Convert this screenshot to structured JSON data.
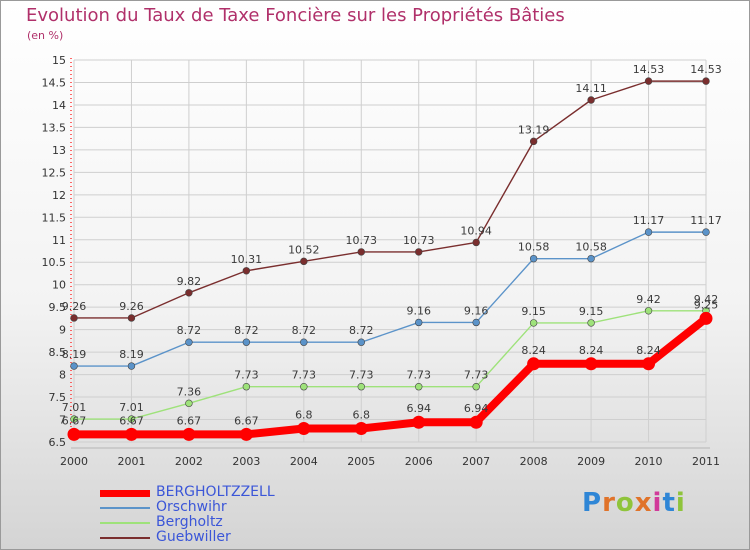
{
  "title": "Evolution du Taux de Taxe Foncière sur les Propriétés Bâties",
  "unit_label": "(en %)",
  "brand": "Proxiti",
  "colors": {
    "title": "#b0306a",
    "legend_text": "#3b56d8",
    "grid": "#cfcfcf",
    "axis_red": "#ff2a2a"
  },
  "chart_data": {
    "type": "line",
    "x": [
      "2000",
      "2001",
      "2002",
      "2003",
      "2004",
      "2005",
      "2006",
      "2007",
      "2008",
      "2009",
      "2010",
      "2011"
    ],
    "ylim": [
      6.5,
      15
    ],
    "yticks": [
      "6.5",
      "7",
      "7.5",
      "8",
      "8.5",
      "9",
      "9.5",
      "10",
      "10.5",
      "11",
      "11.5",
      "12",
      "12.5",
      "13",
      "13.5",
      "14",
      "14.5",
      "15"
    ],
    "grid": true,
    "legend_position": "bottom-left",
    "series": [
      {
        "name": "BERGHOLTZZELL",
        "color": "#ff0000",
        "values": [
          6.67,
          6.67,
          6.67,
          6.67,
          6.8,
          6.8,
          6.94,
          6.94,
          8.24,
          8.24,
          8.24,
          9.25
        ],
        "labels": [
          "6.67",
          "6.67",
          "6.67",
          "6.67",
          "6.8",
          "6.8",
          "6.94",
          "6.94",
          "8.24",
          "8.24",
          "8.24",
          "9.25"
        ]
      },
      {
        "name": "Orschwihr",
        "color": "#5b93c9",
        "values": [
          8.19,
          8.19,
          8.72,
          8.72,
          8.72,
          8.72,
          9.16,
          9.16,
          10.58,
          10.58,
          11.17,
          11.17
        ],
        "labels": [
          "8.19",
          "8.19",
          "8.72",
          "8.72",
          "8.72",
          "8.72",
          "9.16",
          "9.16",
          "10.58",
          "10.58",
          "11.17",
          "11.17"
        ]
      },
      {
        "name": "Bergholtz",
        "color": "#9ee27a",
        "values": [
          7.01,
          7.01,
          7.36,
          7.73,
          7.73,
          7.73,
          7.73,
          7.73,
          9.15,
          9.15,
          9.42,
          9.42
        ],
        "labels": [
          "7.01",
          "7.01",
          "7.36",
          "7.73",
          "7.73",
          "7.73",
          "7.73",
          "7.73",
          "9.15",
          "9.15",
          "9.42",
          "9.42"
        ]
      },
      {
        "name": "Guebwiller",
        "color": "#7a2e2e",
        "values": [
          9.26,
          9.26,
          9.82,
          10.31,
          10.52,
          10.73,
          10.73,
          10.94,
          13.19,
          14.11,
          14.53,
          14.53
        ],
        "labels": [
          "9.26",
          "9.26",
          "9.82",
          "10.31",
          "10.52",
          "10.73",
          "10.73",
          "10.94",
          "13.19",
          "14.11",
          "14.53",
          "14.53"
        ]
      }
    ]
  }
}
